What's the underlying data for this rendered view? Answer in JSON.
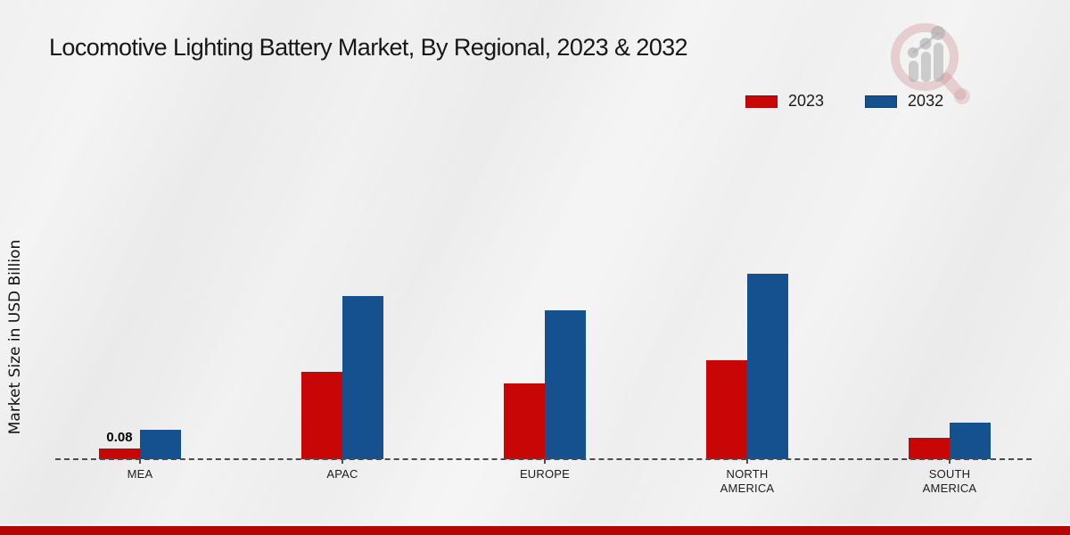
{
  "chart_data": {
    "type": "bar",
    "title": "Locomotive Lighting Battery Market, By Regional, 2023 & 2032",
    "ylabel": "Market Size in USD Billion",
    "xlabel": "",
    "categories": [
      "MEA",
      "APAC",
      "EUROPE",
      "NORTH\nAMERICA",
      "SOUTH\nAMERICA"
    ],
    "series": [
      {
        "name": "2023",
        "color": "#c80606",
        "border_color": "#a50404",
        "values": [
          0.08,
          0.65,
          0.57,
          0.74,
          0.16
        ],
        "value_labels": [
          "0.08",
          "",
          "",
          "",
          ""
        ]
      },
      {
        "name": "2032",
        "color": "#15508f",
        "border_color": "#113f72",
        "values": [
          0.22,
          1.22,
          1.11,
          1.39,
          0.27
        ],
        "value_labels": [
          "",
          "",
          "",
          "",
          ""
        ]
      }
    ],
    "ylim": [
      0,
      1.6
    ],
    "grid": false,
    "legend_position": "top-right",
    "baseline_style": "dashed-zero-line",
    "annotations": [
      {
        "category": "MEA",
        "series": "2023",
        "text": "0.08"
      }
    ]
  },
  "decor": {
    "watermark_icon": "magnifier-bar-chart-logo",
    "bottom_stripe_color": "#b50505",
    "background_color": "#ebebeb",
    "zero_line_color": "#4c4c4c"
  }
}
